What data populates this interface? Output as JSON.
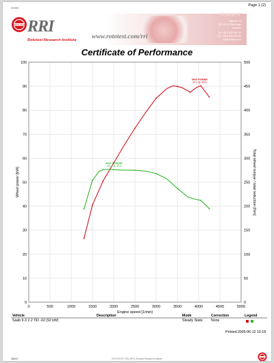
{
  "header": {
    "ref_id": "ID9959",
    "page_number": "Page 1 (2)",
    "brand": "RRI",
    "brand_subtitle": "Rototest Research Institute",
    "website": "www.rototest.com/rri",
    "company": "Rototest",
    "address_lines": [
      "Sjöliden 10",
      "SE-152 42 Rönninge",
      "Sweden",
      "Tel +46 8 532 501 00",
      "Fax +46 8 532 502 80",
      "rri@rototest.com"
    ],
    "logo_text": "ROTO TEST"
  },
  "title": "Certificate of Performance",
  "chart_data": {
    "type": "line",
    "xlabel": "Engine speed [1/min]",
    "ylabel_left": "Wheel power [kW]",
    "ylabel_right": "Total wheel torque / total reduction [Nm]",
    "xlim": [
      0,
      5000
    ],
    "ylim_left": [
      0,
      100
    ],
    "ylim_right": [
      0,
      500
    ],
    "x_ticks": [
      0,
      500,
      1000,
      1500,
      2000,
      2500,
      3000,
      3500,
      4000,
      4500,
      5000
    ],
    "y_ticks_left": [
      0,
      10,
      20,
      30,
      40,
      50,
      60,
      70,
      80,
      90,
      100
    ],
    "y_ticks_right": [
      0,
      50,
      100,
      150,
      200,
      250,
      300,
      350,
      400,
      450,
      500
    ],
    "grid": true,
    "series": [
      {
        "color": "#d0111e",
        "axis": "left",
        "x": [
          1300,
          1500,
          1750,
          2000,
          2250,
          2500,
          2750,
          3000,
          3250,
          3400,
          3600,
          3800,
          3950,
          4050,
          4250
        ],
        "y": [
          26.5,
          40.5,
          50.5,
          58,
          65.5,
          72.5,
          79,
          85,
          89,
          90.2,
          89.5,
          87.5,
          89.5,
          90.2,
          85.5
        ],
        "markers_x": [
          1300,
          1500,
          1750,
          2000,
          2500,
          3000,
          3500,
          3800,
          4050,
          4250
        ],
        "markers_y": [
          26.5,
          40.5,
          50.5,
          58,
          72.5,
          85,
          90,
          87.5,
          90.2,
          85.5
        ]
      },
      {
        "color": "#33b52c",
        "axis": "right",
        "x": [
          1300,
          1500,
          1650,
          1750,
          1900,
          2000,
          2250,
          2500,
          2750,
          3000,
          3250,
          3500,
          3750,
          3900,
          4050,
          4250
        ],
        "y": [
          194,
          254,
          272,
          276,
          277,
          276,
          275,
          275,
          273,
          268,
          257,
          237,
          219,
          215,
          212,
          195
        ],
        "markers_x": [
          1300,
          1500,
          1750,
          2000,
          2500,
          3000,
          3500,
          4050,
          4250
        ],
        "markers_y": [
          194,
          254,
          276,
          276,
          275,
          268,
          237,
          212,
          195
        ]
      }
    ],
    "annotations": [
      {
        "series": 0,
        "title": "MAX POWER",
        "value": "90.2 @ 4024",
        "x": 4024,
        "y": 90.2
      },
      {
        "series": 1,
        "title": "MAX TORQUE",
        "value": "276.4 @ 2011",
        "x": 2011,
        "y": 276.4
      }
    ]
  },
  "vehicle_table": {
    "headers": [
      "Vehicle",
      "Description",
      "Mode",
      "Correction",
      "Legend"
    ],
    "row": {
      "vehicle": "Saab 9-3 2.2 TiD -02 (92 kW)",
      "description": "",
      "mode": "Steady State",
      "correction": "None"
    },
    "legend_colors": [
      "#d0111e",
      "#33b52c"
    ]
  },
  "footer": {
    "printed": "Printed 2005-06-12 15:18",
    "id": "38843",
    "center_text": "ROTOTEST VPA  |  RRI  |  Rototest Research Institute"
  }
}
